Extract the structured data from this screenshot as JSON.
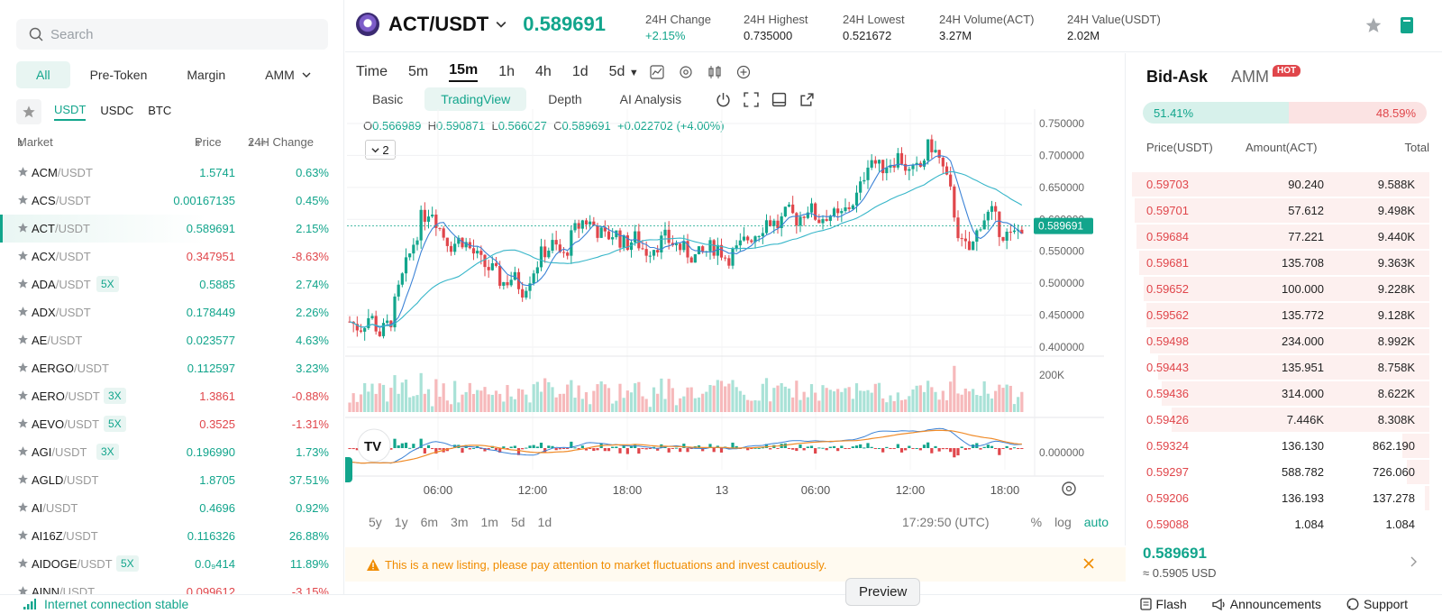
{
  "search": {
    "placeholder": "Search"
  },
  "filters": [
    "All",
    "Pre-Token",
    "Margin",
    "AMM"
  ],
  "quote_tabs": [
    "USDT",
    "USDC",
    "BTC"
  ],
  "market_head": {
    "market": "Market",
    "price": "Price",
    "change": "24H Change"
  },
  "markets": [
    {
      "base": "ACM",
      "quote": "/USDT",
      "lev": "",
      "price": "1.5741",
      "change": "0.63%",
      "dir": "up"
    },
    {
      "base": "ACS",
      "quote": "/USDT",
      "lev": "",
      "price": "0.00167135",
      "change": "0.45%",
      "dir": "up"
    },
    {
      "base": "ACT",
      "quote": "/USDT",
      "lev": "",
      "price": "0.589691",
      "change": "2.15%",
      "dir": "up"
    },
    {
      "base": "ACX",
      "quote": "/USDT",
      "lev": "",
      "price": "0.347951",
      "change": "-8.63%",
      "dir": "down"
    },
    {
      "base": "ADA",
      "quote": "/USDT",
      "lev": "5X",
      "price": "0.5885",
      "change": "2.74%",
      "dir": "up"
    },
    {
      "base": "ADX",
      "quote": "/USDT",
      "lev": "",
      "price": "0.178449",
      "change": "2.26%",
      "dir": "up"
    },
    {
      "base": "AE",
      "quote": "/USDT",
      "lev": "",
      "price": "0.023577",
      "change": "4.63%",
      "dir": "up"
    },
    {
      "base": "AERGO",
      "quote": "/USDT",
      "lev": "",
      "price": "0.112597",
      "change": "3.23%",
      "dir": "up"
    },
    {
      "base": "AERO",
      "quote": "/USDT",
      "lev": "3X",
      "price": "1.3861",
      "change": "-0.88%",
      "dir": "down"
    },
    {
      "base": "AEVO",
      "quote": "/USDT",
      "lev": "5X",
      "price": "0.3525",
      "change": "-1.31%",
      "dir": "down"
    },
    {
      "base": "AGI",
      "quote": "/USDT",
      "lev": "3X",
      "price": "0.196990",
      "change": "1.73%",
      "dir": "up"
    },
    {
      "base": "AGLD",
      "quote": "/USDT",
      "lev": "",
      "price": "1.8705",
      "change": "37.51%",
      "dir": "up"
    },
    {
      "base": "AI",
      "quote": "/USDT",
      "lev": "",
      "price": "0.4696",
      "change": "0.92%",
      "dir": "up"
    },
    {
      "base": "AI16Z",
      "quote": "/USDT",
      "lev": "",
      "price": "0.116326",
      "change": "26.88%",
      "dir": "up"
    },
    {
      "base": "AIDOGE",
      "quote": "/USDT",
      "lev": "5X",
      "price": "0.0₉414",
      "change": "11.89%",
      "dir": "up"
    },
    {
      "base": "AINN",
      "quote": "/USDT",
      "lev": "",
      "price": "0.099612",
      "change": "-3.15%",
      "dir": "down"
    }
  ],
  "pair": {
    "name": "ACT/USDT",
    "last": "0.589691"
  },
  "stats": [
    {
      "label": "24H Change",
      "value": "+2.15%"
    },
    {
      "label": "24H Highest",
      "value": "0.735000"
    },
    {
      "label": "24H Lowest",
      "value": "0.521672"
    },
    {
      "label": "24H Volume(ACT)",
      "value": "3.27M"
    },
    {
      "label": "24H Value(USDT)",
      "value": "2.02M"
    }
  ],
  "timeframes": [
    "Time",
    "5m",
    "15m",
    "1h",
    "4h",
    "1d",
    "5d"
  ],
  "views": [
    "Basic",
    "TradingView",
    "Depth",
    "AI Analysis"
  ],
  "ohlc": {
    "o": "0.566989",
    "h": "0.590871",
    "l": "0.566027",
    "c": "0.589691",
    "chg": "+0.022702 (+4.00%)"
  },
  "collapse_count": "2",
  "chart_data": {
    "type": "candlestick",
    "y_ticks": [
      "0.750000",
      "0.700000",
      "0.650000",
      "0.600000",
      "0.550000",
      "0.500000",
      "0.450000",
      "0.400000"
    ],
    "y_range": [
      0.4,
      0.75
    ],
    "current_price_label": "0.589691",
    "volume_tick": "200K",
    "macd_tick": "0.000000",
    "x_ticks": [
      "06:00",
      "12:00",
      "18:00",
      "13",
      "06:00",
      "12:00",
      "18:00"
    ],
    "price_path": [
      0.44,
      0.43,
      0.45,
      0.42,
      0.44,
      0.5,
      0.55,
      0.6,
      0.62,
      0.58,
      0.56,
      0.57,
      0.55,
      0.53,
      0.52,
      0.5,
      0.51,
      0.49,
      0.52,
      0.55,
      0.56,
      0.54,
      0.58,
      0.6,
      0.59,
      0.57,
      0.58,
      0.56,
      0.57,
      0.55,
      0.56,
      0.57,
      0.56,
      0.55,
      0.54,
      0.55,
      0.56,
      0.54,
      0.55,
      0.57,
      0.58,
      0.6,
      0.59,
      0.61,
      0.6,
      0.62,
      0.6,
      0.61,
      0.6,
      0.62,
      0.64,
      0.7,
      0.68,
      0.69,
      0.7,
      0.67,
      0.68,
      0.72,
      0.69,
      0.64,
      0.56,
      0.55,
      0.6,
      0.61,
      0.58,
      0.57,
      0.59
    ]
  },
  "range_opts": [
    "5y",
    "1y",
    "6m",
    "3m",
    "1m",
    "5d",
    "1d"
  ],
  "clock": "17:29:50 (UTC)",
  "scale_opts": [
    "%",
    "log",
    "auto"
  ],
  "banner": "This is a new listing, please pay attention to market fluctuations and invest cautiously.",
  "book": {
    "tabs": [
      "Bid-Ask",
      "AMM"
    ],
    "hot": "HOT",
    "bid_pct": "51.41%",
    "ask_pct": "48.59%",
    "bid_frac": 0.5141,
    "head": {
      "price": "Price(USDT)",
      "amount": "Amount(ACT)",
      "total": "Total"
    },
    "asks": [
      {
        "price": "0.59703",
        "amount": "90.240",
        "total": "9.588K",
        "depth": 1.0
      },
      {
        "price": "0.59701",
        "amount": "57.612",
        "total": "9.498K",
        "depth": 0.99
      },
      {
        "price": "0.59684",
        "amount": "77.221",
        "total": "9.440K",
        "depth": 0.985
      },
      {
        "price": "0.59681",
        "amount": "135.708",
        "total": "9.363K",
        "depth": 0.977
      },
      {
        "price": "0.59652",
        "amount": "100.000",
        "total": "9.228K",
        "depth": 0.962
      },
      {
        "price": "0.59562",
        "amount": "135.772",
        "total": "9.128K",
        "depth": 0.952
      },
      {
        "price": "0.59498",
        "amount": "234.000",
        "total": "8.992K",
        "depth": 0.938
      },
      {
        "price": "0.59443",
        "amount": "135.951",
        "total": "8.758K",
        "depth": 0.913
      },
      {
        "price": "0.59436",
        "amount": "314.000",
        "total": "8.622K",
        "depth": 0.9
      },
      {
        "price": "0.59426",
        "amount": "7.446K",
        "total": "8.308K",
        "depth": 0.866
      },
      {
        "price": "0.59324",
        "amount": "136.130",
        "total": "862.190",
        "depth": 0.09
      },
      {
        "price": "0.59297",
        "amount": "588.782",
        "total": "726.060",
        "depth": 0.076
      },
      {
        "price": "0.59206",
        "amount": "136.193",
        "total": "137.278",
        "depth": 0.014
      },
      {
        "price": "0.59088",
        "amount": "1.084",
        "total": "1.084",
        "depth": 0.001
      }
    ],
    "last": "0.589691",
    "last_usd": "≈ 0.5905 USD"
  },
  "footer": {
    "status": "Internet connection stable",
    "links": [
      "Flash",
      "Announcements",
      "Support"
    ]
  },
  "tooltip": "Preview",
  "colors": {
    "up": "#12a58c",
    "down": "#e0464b",
    "ma1": "#3b82d6",
    "ma2": "#37b6c9",
    "signal": "#f08c2a"
  }
}
